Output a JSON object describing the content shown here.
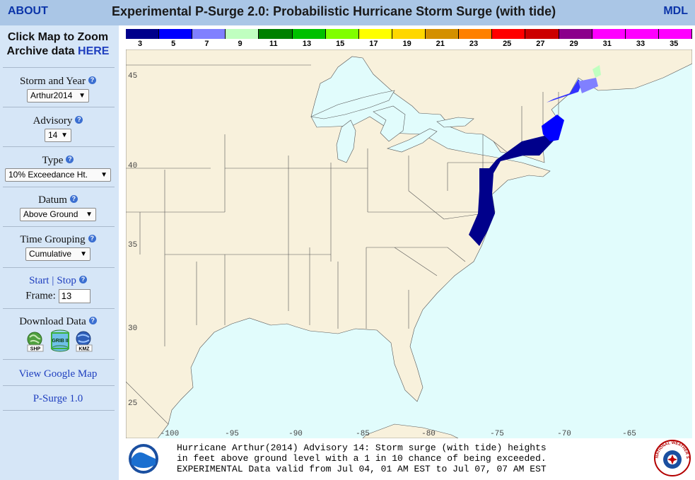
{
  "header": {
    "about": "ABOUT",
    "title": "Experimental P-Surge 2.0: Probabilistic Hurricane Storm Surge (with tide)",
    "mdl": "MDL"
  },
  "sidebar": {
    "zoom_line1": "Click Map to Zoom",
    "archive_text": "Archive data",
    "archive_link": "HERE",
    "storm_label": "Storm and Year",
    "storm_value": "Arthur2014",
    "advisory_label": "Advisory",
    "advisory_value": "14",
    "type_label": "Type",
    "type_value": "10% Exceedance Ht.",
    "datum_label": "Datum",
    "datum_value": "Above Ground",
    "time_label": "Time Grouping",
    "time_value": "Cumulative",
    "start": "Start",
    "divider": "|",
    "stop": "Stop",
    "frame_label": "Frame:",
    "frame_value": "13",
    "download_label": "Download Data",
    "shp": "SHP",
    "grib": "GRIB II",
    "kmz": "KMZ",
    "google_map": "View Google Map",
    "psurge1": "P-Surge 1.0",
    "help_glyph": "?"
  },
  "legend": {
    "colors": [
      "#00008b",
      "#0000ff",
      "#8080ff",
      "#c0ffc0",
      "#008000",
      "#00c000",
      "#80ff00",
      "#ffff00",
      "#ffd700",
      "#d49000",
      "#ff8000",
      "#ff0000",
      "#cc0000",
      "#8b008b",
      "#ff00ff",
      "#ff00ff",
      "#ff00ff"
    ],
    "ticks": [
      "3",
      "5",
      "7",
      "9",
      "11",
      "13",
      "15",
      "17",
      "19",
      "21",
      "23",
      "25",
      "27",
      "29",
      "31",
      "33",
      "35"
    ]
  },
  "map": {
    "lat_labels": [
      "45",
      "40",
      "35",
      "30",
      "25"
    ],
    "lon_labels": [
      "-100",
      "-95",
      "-90",
      "-85",
      "-80",
      "-75",
      "-70",
      "-65"
    ],
    "land_color": "#f8f1dc",
    "water_color": "#e1fcfc",
    "border_color": "#555555"
  },
  "caption": {
    "line1": "Hurricane Arthur(2014) Advisory 14: Storm surge (with tide) heights",
    "line2": "in feet above ground level with a 1 in 10 chance of being exceeded.",
    "line3": "EXPERIMENTAL Data valid from Jul 04, 01 AM EST to Jul 07, 07 AM EST"
  },
  "logos": {
    "noaa": "NOAA",
    "nws": "NATIONAL WEATHER SERVICE"
  }
}
